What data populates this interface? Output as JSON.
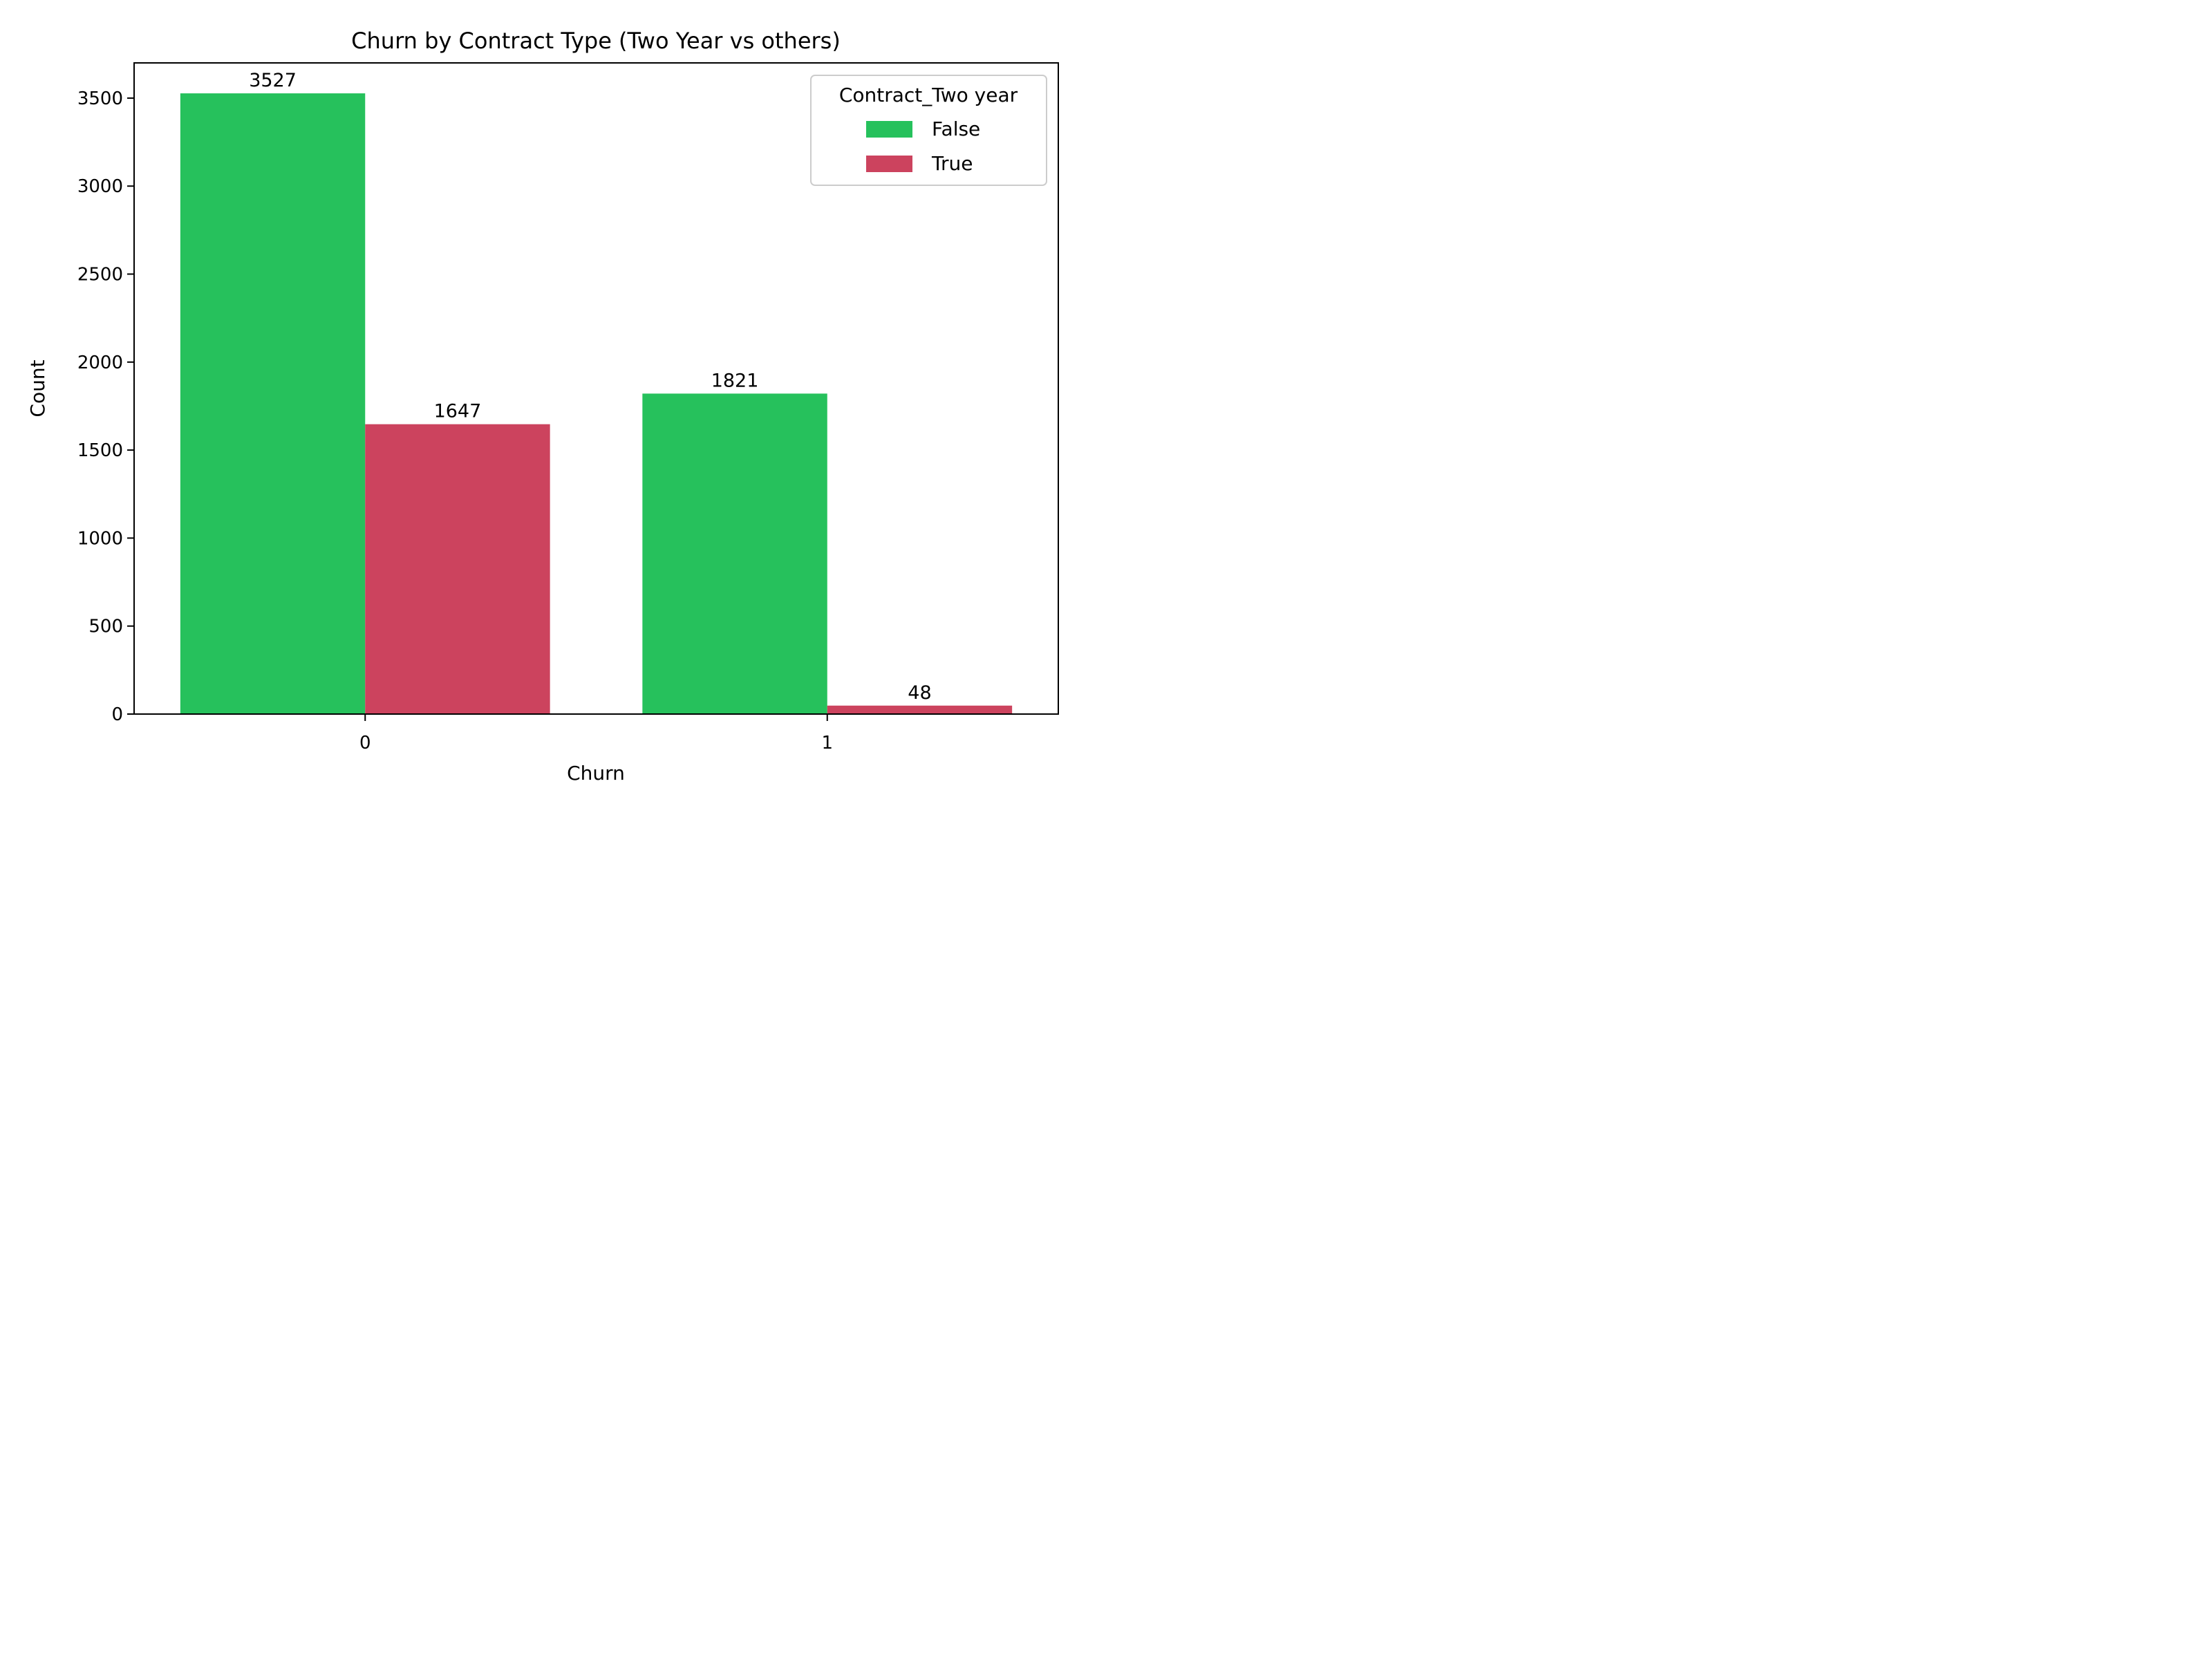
{
  "chart_data": {
    "type": "bar",
    "title": "Churn by Contract Type (Two Year vs others)",
    "xlabel": "Churn",
    "ylabel": "Count",
    "categories": [
      "0",
      "1"
    ],
    "series": [
      {
        "name": "False",
        "color": "#26c15c",
        "values": [
          3527,
          1821
        ],
        "labels": [
          "3527",
          "1821"
        ]
      },
      {
        "name": "True",
        "color": "#cc435e",
        "values": [
          1647,
          48
        ],
        "labels": [
          "1647",
          "48"
        ]
      }
    ],
    "ylim": [
      0,
      3700
    ],
    "yticks": [
      0,
      500,
      1000,
      1500,
      2000,
      2500,
      3000,
      3500
    ],
    "ytick_labels": [
      "0",
      "500",
      "1000",
      "1500",
      "2000",
      "2500",
      "3000",
      "3500"
    ],
    "grid": false,
    "legend": {
      "title": "Contract_Two year",
      "placement": "top-right"
    }
  }
}
